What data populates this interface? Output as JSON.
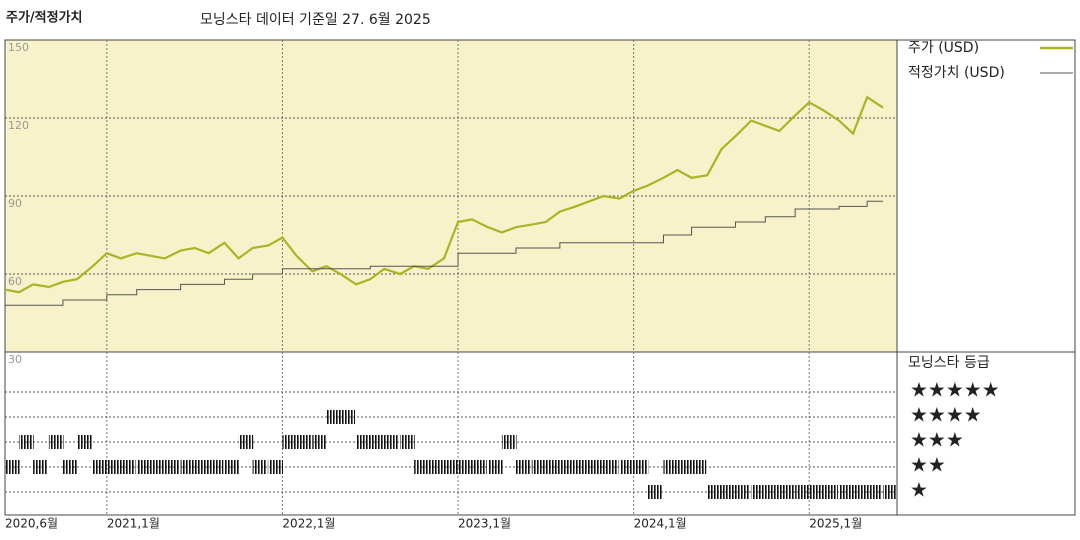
{
  "chart_data": {
    "type": "line",
    "title": "주가/적정가치",
    "subtitle": "모닝스타 데이터 기준일 27. 6월 2025",
    "x": [
      2020.42,
      2020.5,
      2020.58,
      2020.67,
      2020.75,
      2020.83,
      2020.92,
      2021.0,
      2021.08,
      2021.17,
      2021.25,
      2021.33,
      2021.42,
      2021.5,
      2021.58,
      2021.67,
      2021.75,
      2021.83,
      2021.92,
      2022.0,
      2022.08,
      2022.17,
      2022.25,
      2022.33,
      2022.42,
      2022.5,
      2022.58,
      2022.67,
      2022.75,
      2022.83,
      2022.92,
      2023.0,
      2023.08,
      2023.17,
      2023.25,
      2023.33,
      2023.42,
      2023.5,
      2023.58,
      2023.67,
      2023.75,
      2023.83,
      2023.92,
      2024.0,
      2024.08,
      2024.17,
      2024.25,
      2024.33,
      2024.42,
      2024.5,
      2024.58,
      2024.67,
      2024.75,
      2024.83,
      2024.92,
      2025.0,
      2025.08,
      2025.17,
      2025.25,
      2025.33,
      2025.42
    ],
    "series": [
      {
        "name": "주가 (USD)",
        "color": "#a9b526",
        "values": [
          54,
          53,
          56,
          55,
          57,
          58,
          63,
          68,
          66,
          68,
          67,
          66,
          69,
          70,
          68,
          72,
          66,
          70,
          71,
          74,
          67,
          61,
          63,
          60,
          56,
          58,
          62,
          60,
          63,
          62,
          66,
          80,
          81,
          78,
          76,
          78,
          79,
          80,
          84,
          86,
          88,
          90,
          89,
          92,
          94,
          97,
          100,
          97,
          98,
          108,
          113,
          119,
          117,
          115,
          121,
          126,
          123,
          119,
          114,
          128,
          124
        ]
      },
      {
        "name": "적정가치 (USD)",
        "color": "#555555",
        "step": true,
        "values": [
          48,
          48,
          48,
          48,
          50,
          50,
          50,
          52,
          52,
          54,
          54,
          54,
          56,
          56,
          56,
          58,
          58,
          60,
          60,
          62,
          62,
          62,
          62,
          62,
          62,
          63,
          63,
          63,
          63,
          63,
          63,
          68,
          68,
          68,
          68,
          70,
          70,
          70,
          72,
          72,
          72,
          72,
          72,
          72,
          72,
          75,
          75,
          78,
          78,
          78,
          80,
          80,
          82,
          82,
          85,
          85,
          85,
          86,
          86,
          88,
          88
        ]
      }
    ],
    "xlim": [
      2020.42,
      2025.5
    ],
    "xticks": [
      {
        "value": 2020.42,
        "label": "2020,6월"
      },
      {
        "value": 2021.0,
        "label": "2021,1월"
      },
      {
        "value": 2022.0,
        "label": "2022,1월"
      },
      {
        "value": 2023.0,
        "label": "2023,1월"
      },
      {
        "value": 2024.0,
        "label": "2024,1월"
      },
      {
        "value": 2025.0,
        "label": "2025,1월"
      }
    ],
    "ylim": [
      30,
      150
    ],
    "yticks": [
      30,
      60,
      90,
      120,
      150
    ],
    "grid": true,
    "ratings": {
      "title": "모닝스타 등급",
      "color": "#111111",
      "values": [
        2,
        3,
        2,
        3,
        2,
        3,
        2,
        2,
        2,
        2,
        2,
        2,
        2,
        2,
        2,
        2,
        3,
        2,
        2,
        3,
        3,
        3,
        4,
        4,
        3,
        3,
        3,
        3,
        2,
        2,
        2,
        2,
        2,
        2,
        3,
        2,
        2,
        2,
        2,
        2,
        2,
        2,
        2,
        2,
        1,
        2,
        2,
        2,
        1,
        1,
        1,
        1,
        1,
        1,
        1,
        1,
        1,
        1,
        1,
        1,
        1
      ],
      "levels": [
        5,
        4,
        3,
        2,
        1
      ],
      "level_labels": [
        "★★★★★",
        "★★★★",
        "★★★",
        "★★",
        "★"
      ]
    }
  }
}
